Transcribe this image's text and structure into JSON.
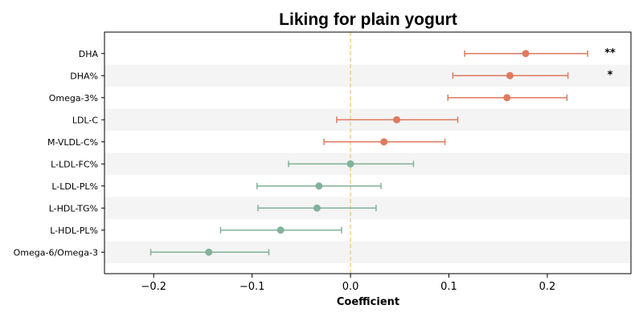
{
  "chart_data": {
    "type": "forest",
    "title": "Liking for plain yogurt",
    "xlabel": "Coefficient",
    "ylabel": "",
    "xlim": [
      -0.25,
      0.285
    ],
    "xticks": [
      -0.2,
      -0.1,
      0.0,
      0.1,
      0.2
    ],
    "xtick_labels": [
      "−0.2",
      "−0.1",
      "0.0",
      "0.1",
      "0.2"
    ],
    "reference_line": 0.0,
    "grid": false,
    "colors": {
      "positive": "#e07a5f",
      "negative": "#81b29a",
      "reference": "#f2cc8f",
      "band": "#f4f4f4"
    },
    "items": [
      {
        "label": "DHA",
        "coef": 0.178,
        "lo": 0.116,
        "hi": 0.241,
        "sig": "**"
      },
      {
        "label": "DHA%",
        "coef": 0.162,
        "lo": 0.104,
        "hi": 0.221,
        "sig": "*"
      },
      {
        "label": "Omega-3%",
        "coef": 0.159,
        "lo": 0.099,
        "hi": 0.22,
        "sig": ""
      },
      {
        "label": "LDL-C",
        "coef": 0.047,
        "lo": -0.014,
        "hi": 0.109,
        "sig": ""
      },
      {
        "label": "M-VLDL-C%",
        "coef": 0.034,
        "lo": -0.027,
        "hi": 0.096,
        "sig": ""
      },
      {
        "label": "L-LDL-FC%",
        "coef": 0.0,
        "lo": -0.063,
        "hi": 0.064,
        "sig": ""
      },
      {
        "label": "L-LDL-PL%",
        "coef": -0.032,
        "lo": -0.095,
        "hi": 0.031,
        "sig": ""
      },
      {
        "label": "L-HDL-TG%",
        "coef": -0.034,
        "lo": -0.094,
        "hi": 0.026,
        "sig": ""
      },
      {
        "label": "L-HDL-PL%",
        "coef": -0.071,
        "lo": -0.132,
        "hi": -0.009,
        "sig": ""
      },
      {
        "label": "Omega-6/Omega-3",
        "coef": -0.144,
        "lo": -0.203,
        "hi": -0.083,
        "sig": ""
      }
    ]
  }
}
